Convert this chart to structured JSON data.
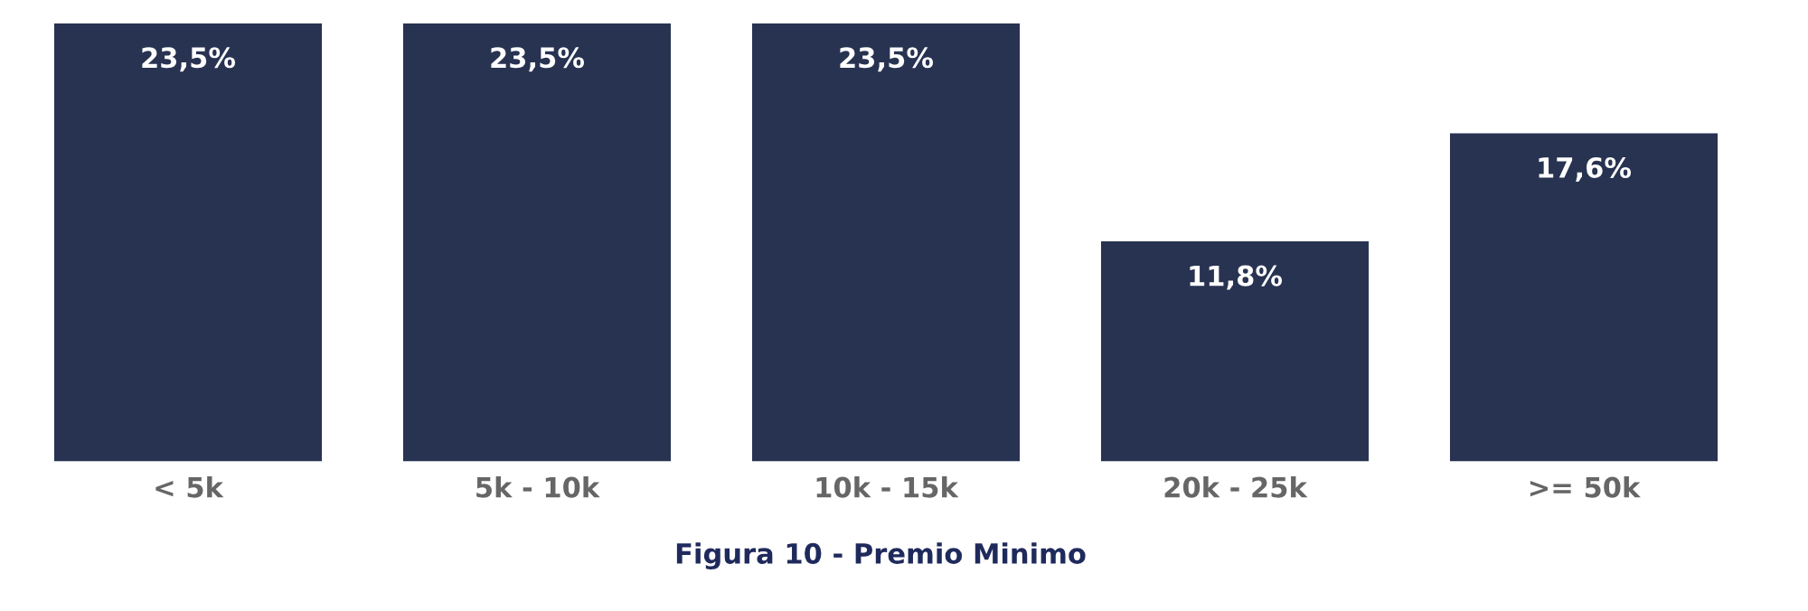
{
  "chart_data": {
    "type": "bar",
    "categories": [
      "< 5k",
      "5k - 10k",
      "10k - 15k",
      "20k - 25k",
      ">= 50k"
    ],
    "values": [
      23.5,
      23.5,
      23.5,
      11.8,
      17.6
    ],
    "value_labels": [
      "23,5%",
      "23,5%",
      "23,5%",
      "11,8%",
      "17,6%"
    ],
    "color": "#283352",
    "annotations": [
      "Figura 10 - Premio Minimo"
    ]
  }
}
